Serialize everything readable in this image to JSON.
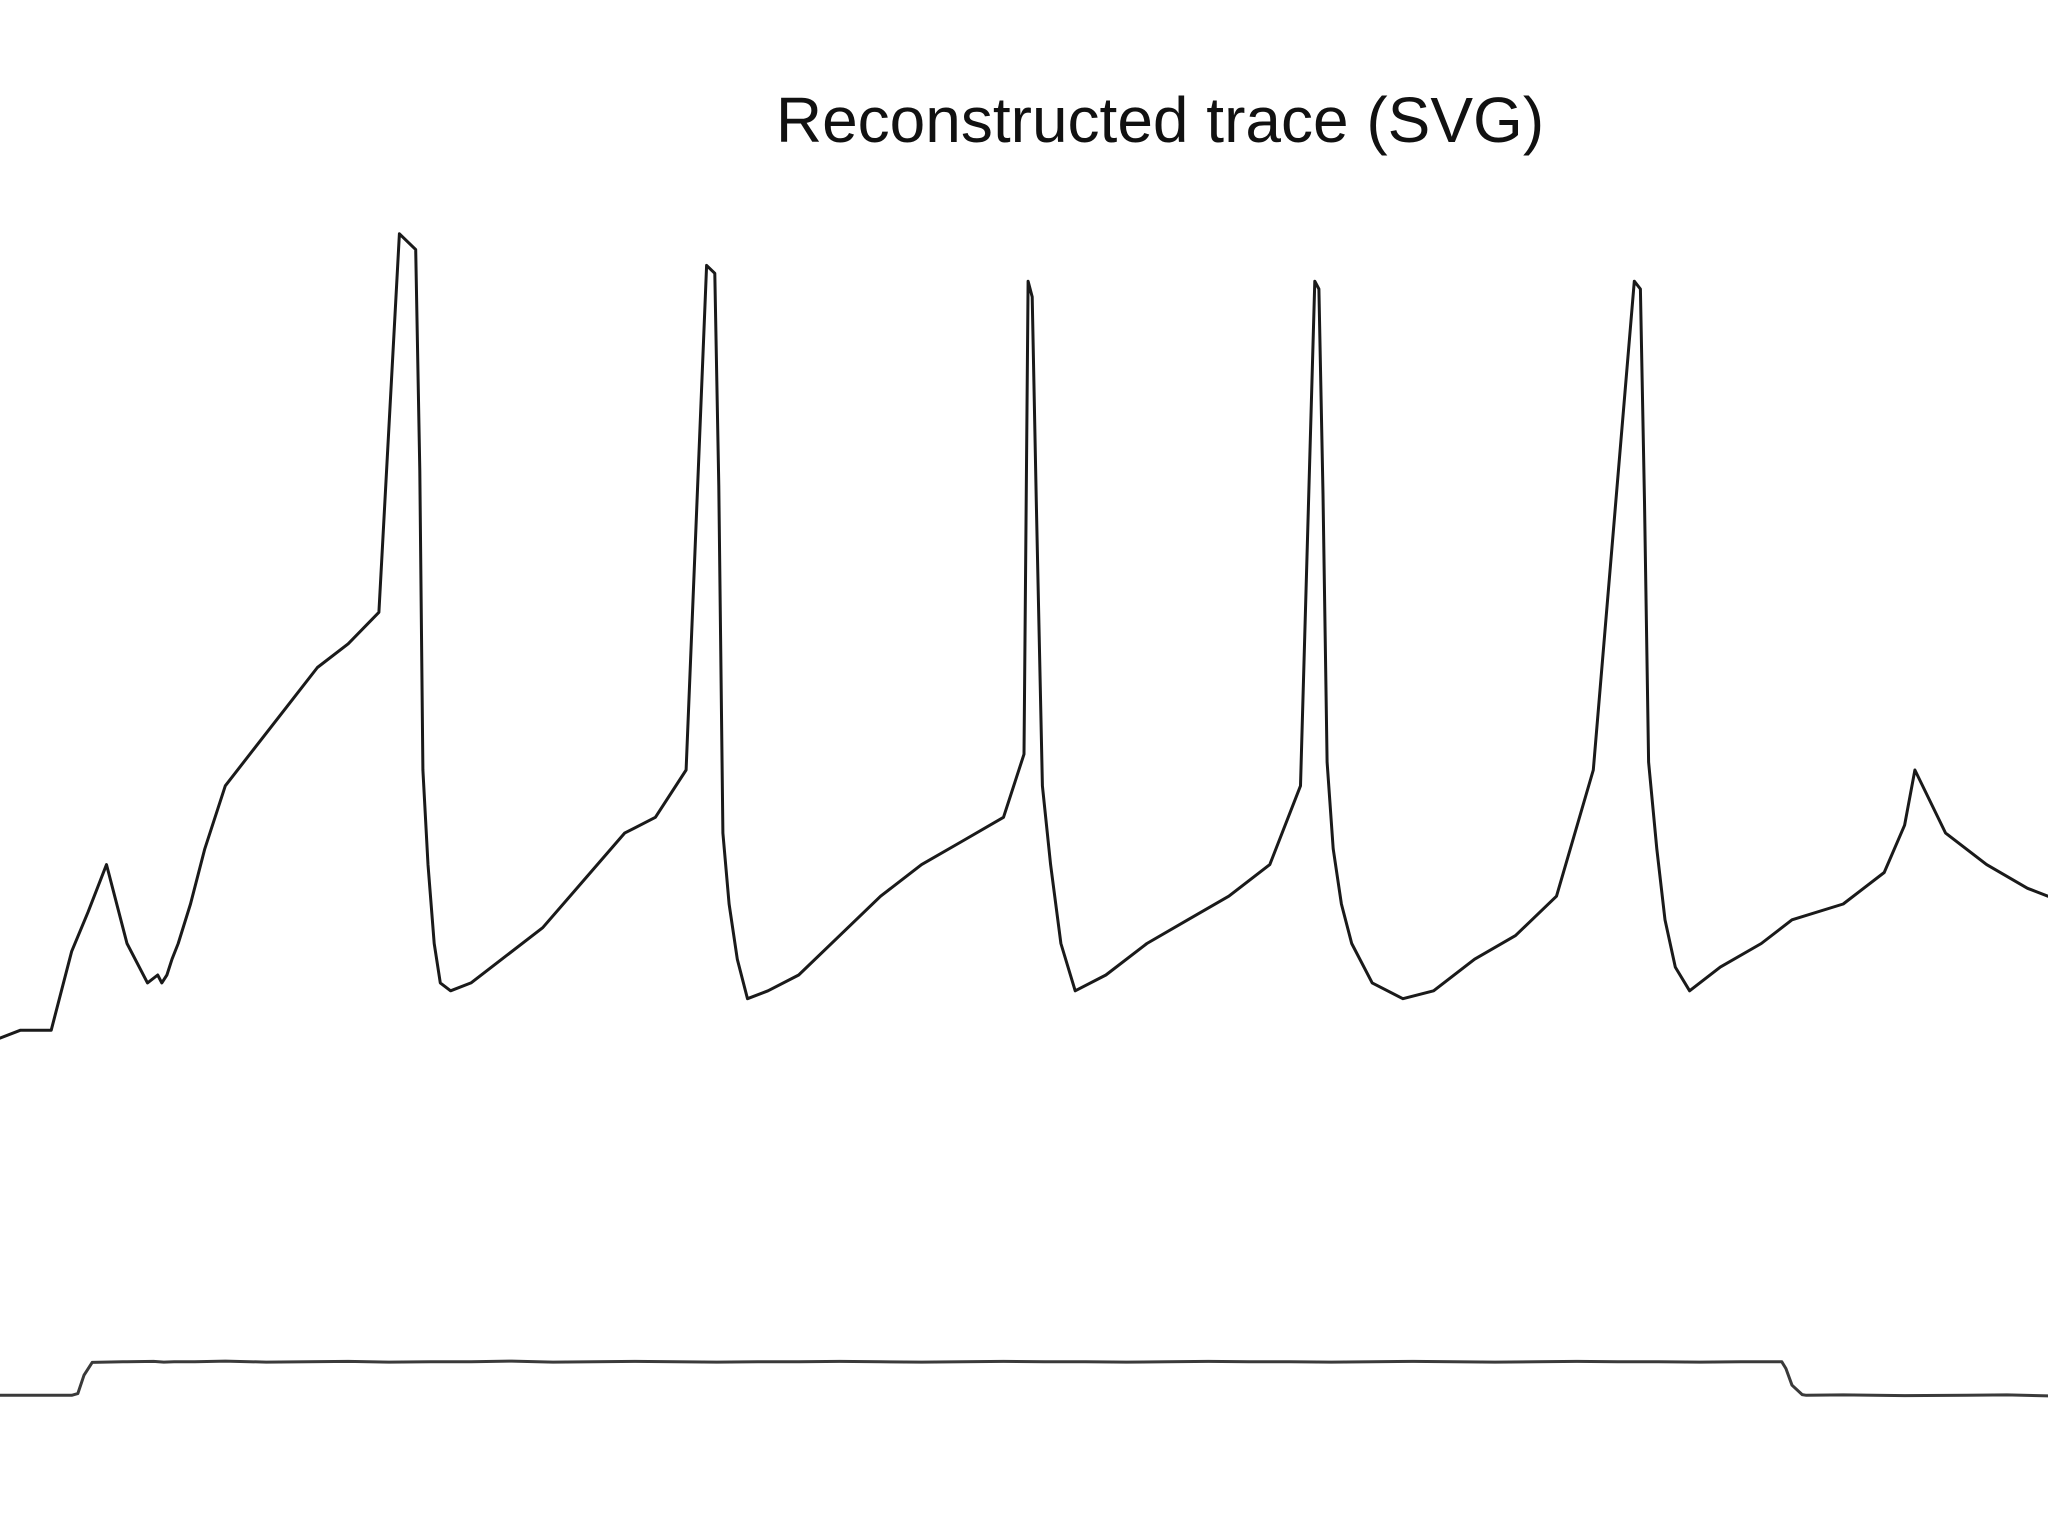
{
  "chart_data": {
    "type": "line",
    "title": "Reconstructed trace (SVG)",
    "xlabel": "",
    "ylabel": "",
    "xlim": [
      0,
      1
    ],
    "grid": false,
    "legend": "none",
    "colors": {
      "voltage": "#1a1a1a",
      "current": "#3a3a3a"
    },
    "series": [
      {
        "id": "voltage",
        "ylim": [
          -80,
          50
        ],
        "x": [
          0,
          0.01,
          0.025,
          0.035,
          0.043,
          0.052,
          0.062,
          0.072,
          0.077,
          0.079,
          0.0815,
          0.084,
          0.087,
          0.093,
          0.1,
          0.11,
          0.125,
          0.14,
          0.155,
          0.17,
          0.185,
          0.195,
          0.203,
          0.205,
          0.2065,
          0.209,
          0.212,
          0.215,
          0.22,
          0.23,
          0.245,
          0.265,
          0.285,
          0.305,
          0.32,
          0.335,
          0.345,
          0.349,
          0.351,
          0.353,
          0.356,
          0.36,
          0.365,
          0.375,
          0.39,
          0.41,
          0.43,
          0.45,
          0.47,
          0.49,
          0.5,
          0.502,
          0.504,
          0.506,
          0.509,
          0.513,
          0.518,
          0.525,
          0.54,
          0.56,
          0.58,
          0.6,
          0.62,
          0.635,
          0.642,
          0.644,
          0.646,
          0.648,
          0.651,
          0.655,
          0.66,
          0.67,
          0.685,
          0.7,
          0.72,
          0.74,
          0.76,
          0.778,
          0.798,
          0.801,
          0.803,
          0.805,
          0.809,
          0.813,
          0.818,
          0.825,
          0.84,
          0.86,
          0.875,
          0.9,
          0.92,
          0.93,
          0.935,
          0.95,
          0.97,
          0.99,
          1.0
        ],
        "y": [
          -62,
          -61,
          -61,
          -51,
          -46,
          -40,
          -50,
          -55,
          -54,
          -55,
          -54,
          -52,
          -50,
          -45,
          -38,
          -30,
          -25,
          -20,
          -15,
          -12,
          -8,
          40,
          38,
          10,
          -28,
          -40,
          -50,
          -55,
          -56,
          -55,
          -52,
          -48,
          -42,
          -36,
          -34,
          -28,
          36,
          35,
          8,
          -36,
          -45,
          -52,
          -57,
          -56,
          -54,
          -49,
          -44,
          -40,
          -37,
          -34,
          -26,
          34,
          32,
          6,
          -30,
          -40,
          -50,
          -56,
          -54,
          -50,
          -47,
          -44,
          -40,
          -30,
          34,
          33,
          7,
          -27,
          -38,
          -45,
          -50,
          -55,
          -57,
          -56,
          -52,
          -49,
          -44,
          -28,
          34,
          33,
          6,
          -27,
          -38,
          -47,
          -53,
          -56,
          -53,
          -50,
          -47,
          -45,
          -41,
          -35,
          -28,
          -36,
          -40,
          -43,
          -44
        ],
        "stroke_width": 3
      },
      {
        "id": "current",
        "ylim": [
          -0.5,
          1.5
        ],
        "x": [
          0,
          0.035,
          0.038,
          0.041,
          0.045,
          0.06,
          0.075,
          0.08,
          0.085,
          0.095,
          0.11,
          0.13,
          0.15,
          0.17,
          0.19,
          0.21,
          0.23,
          0.25,
          0.27,
          0.29,
          0.31,
          0.33,
          0.35,
          0.37,
          0.39,
          0.41,
          0.43,
          0.45,
          0.47,
          0.49,
          0.51,
          0.53,
          0.55,
          0.57,
          0.59,
          0.61,
          0.63,
          0.65,
          0.67,
          0.69,
          0.71,
          0.73,
          0.75,
          0.77,
          0.79,
          0.81,
          0.83,
          0.85,
          0.87,
          0.872,
          0.875,
          0.88,
          0.882,
          0.9,
          0.93,
          0.96,
          0.98,
          1.0
        ],
        "y": [
          0,
          0,
          0.05,
          0.6,
          0.98,
          1.0,
          1.01,
          0.99,
          1.0,
          1.0,
          1.02,
          0.99,
          1.0,
          1.01,
          0.99,
          1.0,
          1.0,
          1.02,
          0.99,
          1.0,
          1.01,
          1.0,
          0.99,
          1.0,
          1.0,
          1.01,
          1.0,
          0.99,
          1.0,
          1.01,
          1.0,
          1.0,
          0.99,
          1.0,
          1.01,
          1.0,
          1.0,
          0.99,
          1.0,
          1.01,
          1.0,
          0.99,
          1.0,
          1.01,
          1.0,
          1.0,
          0.99,
          1.0,
          1.0,
          0.8,
          0.3,
          0.02,
          0.0,
          0.01,
          -0.01,
          0.0,
          0.01,
          -0.02
        ],
        "stroke_width": 3
      }
    ]
  }
}
